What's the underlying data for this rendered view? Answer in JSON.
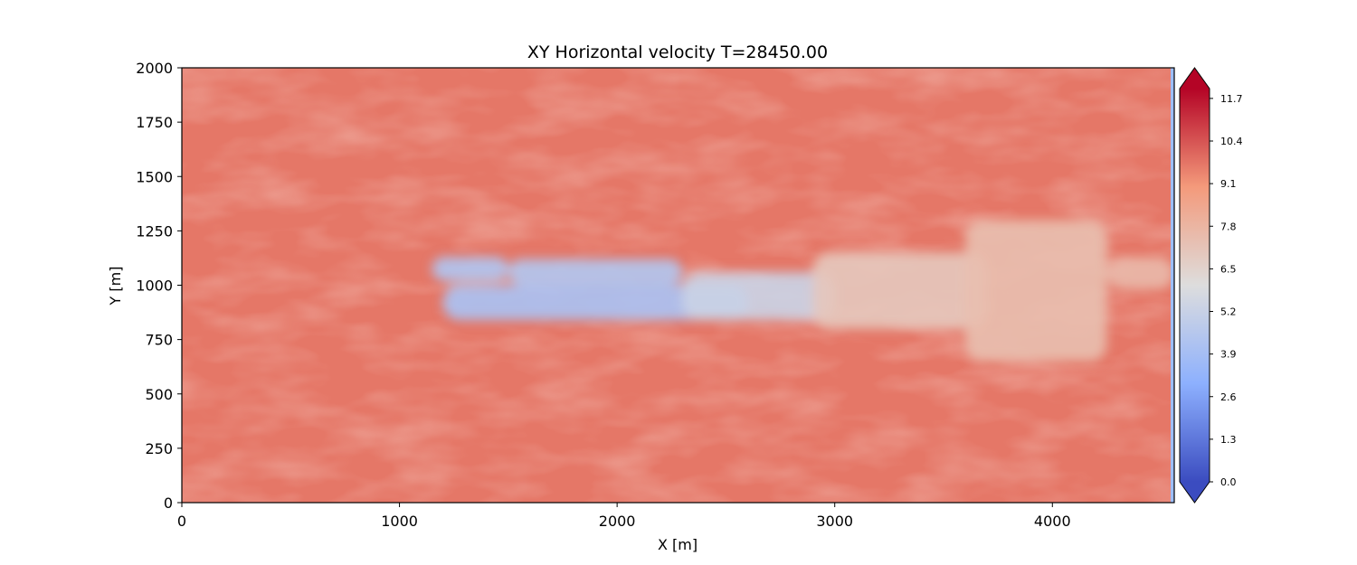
{
  "chart_data": {
    "type": "heatmap",
    "title": "XY Horizontal velocity T=28450.00",
    "xlabel": "X [m]",
    "ylabel": "Y [m]",
    "xlim": [
      0,
      4560
    ],
    "ylim": [
      0,
      2000
    ],
    "x_ticks": [
      0,
      1000,
      2000,
      3000,
      4000
    ],
    "y_ticks": [
      0,
      250,
      500,
      750,
      1000,
      1250,
      1500,
      1750,
      2000
    ],
    "colormap": "coolwarm",
    "colorbar": {
      "min": 0.0,
      "max": 12.0,
      "extend": "both",
      "tick_labels": [
        "0.0",
        "1.3",
        "2.6",
        "3.9",
        "5.2",
        "6.5",
        "7.8",
        "9.1",
        "10.4",
        "11.7"
      ]
    },
    "background_value": 9.7,
    "wake_regions": [
      {
        "x_range": [
          1150,
          1500
        ],
        "y_range": [
          1020,
          1130
        ],
        "value": 4.3
      },
      {
        "x_range": [
          1200,
          2600
        ],
        "y_range": [
          840,
          1000
        ],
        "value": 4.1
      },
      {
        "x_range": [
          1500,
          2300
        ],
        "y_range": [
          1000,
          1120
        ],
        "value": 4.4
      },
      {
        "x_range": [
          2300,
          3000
        ],
        "y_range": [
          840,
          1060
        ],
        "value": 5.3
      },
      {
        "x_range": [
          2900,
          3700
        ],
        "y_range": [
          800,
          1150
        ],
        "value": 7.0
      },
      {
        "x_range": [
          3600,
          4250
        ],
        "y_range": [
          650,
          1300
        ],
        "value": 7.4
      },
      {
        "x_range": [
          4250,
          4560
        ],
        "y_range": [
          980,
          1130
        ],
        "value": 7.6
      }
    ],
    "grid": false
  }
}
